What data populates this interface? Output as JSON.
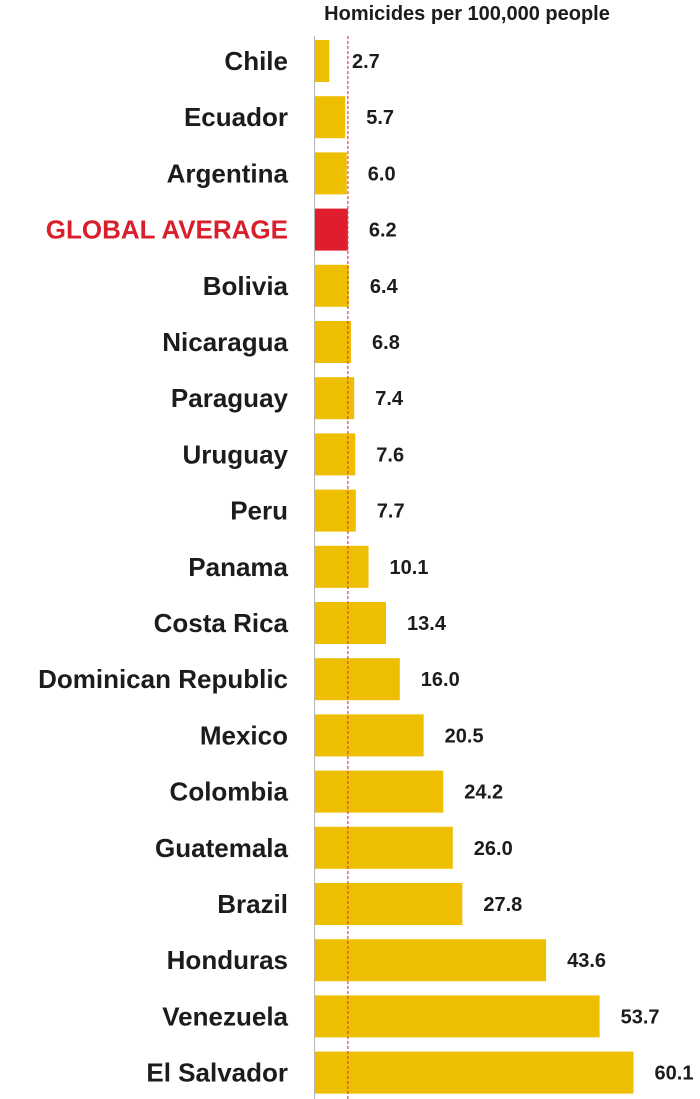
{
  "chart_data": {
    "type": "bar",
    "orientation": "horizontal",
    "title": "Homicides per 100,000 people",
    "categories": [
      "Chile",
      "Ecuador",
      "Argentina",
      "GLOBAL AVERAGE",
      "Bolivia",
      "Nicaragua",
      "Paraguay",
      "Uruguay",
      "Peru",
      "Panama",
      "Costa Rica",
      "Dominican Republic",
      "Mexico",
      "Colombia",
      "Guatemala",
      "Brazil",
      "Honduras",
      "Venezuela",
      "El Salvador"
    ],
    "values": [
      2.7,
      5.7,
      6.0,
      6.2,
      6.4,
      6.8,
      7.4,
      7.6,
      7.7,
      10.1,
      13.4,
      16.0,
      20.5,
      24.2,
      26.0,
      27.8,
      43.6,
      53.7,
      60.1
    ],
    "value_labels": [
      "2.7",
      "5.7",
      "6.0",
      "6.2",
      "6.4",
      "6.8",
      "7.4",
      "7.6",
      "7.7",
      "10.1",
      "13.4",
      "16.0",
      "20.5",
      "24.2",
      "26.0",
      "27.8",
      "43.6",
      "53.7",
      "60.1"
    ],
    "highlight_category": "GLOBAL AVERAGE",
    "reference_line_value": 6.2,
    "xlim": [
      0,
      60.1
    ],
    "grid": false,
    "legend": "none",
    "colors": {
      "bar": "#edbf00",
      "highlight_bar": "#e01d2c",
      "highlight_label": "#d91f2c",
      "reference_line": "#d9434d",
      "text": "#1c1c1c",
      "axis": "#b5b5b5"
    }
  }
}
